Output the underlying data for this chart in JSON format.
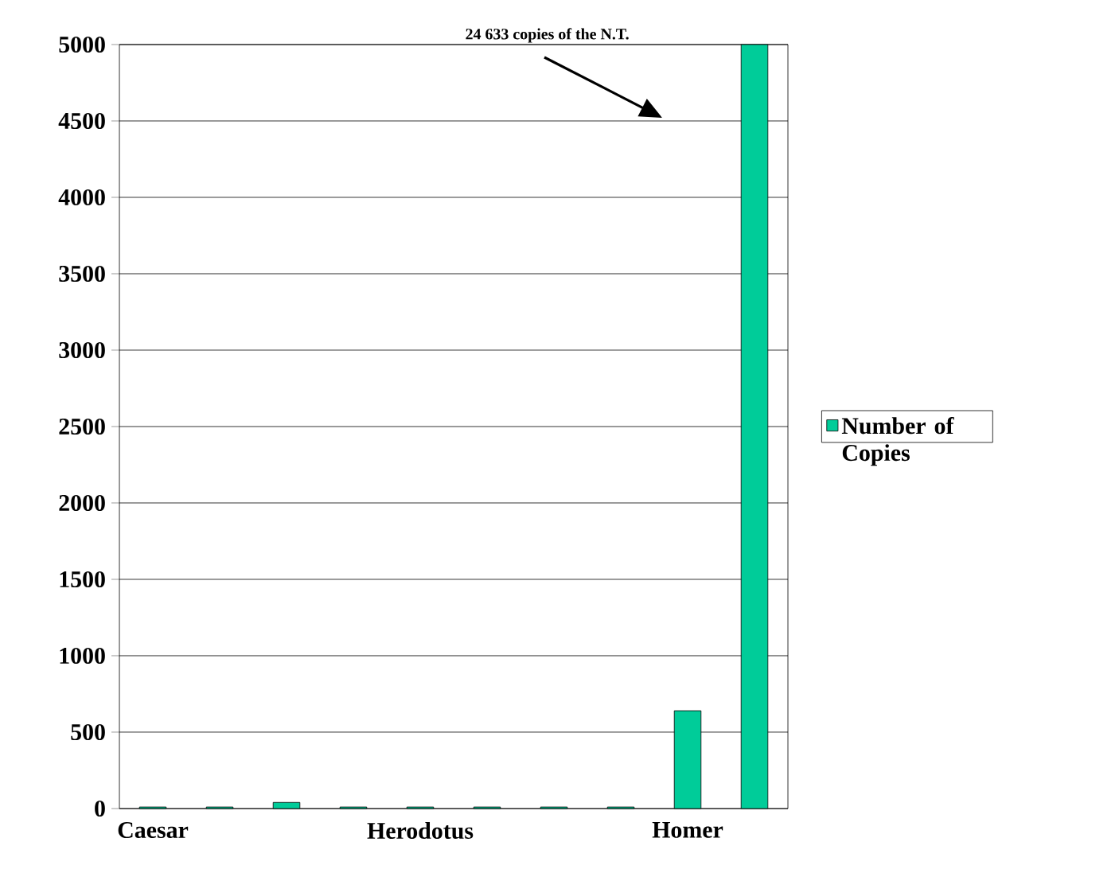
{
  "chart_data": {
    "type": "bar",
    "categories": [
      "Caesar",
      null,
      null,
      null,
      "Herodotus",
      null,
      null,
      null,
      "Homer",
      null
    ],
    "series": [
      {
        "name": "Number of Copies",
        "color": "#00cc99",
        "values": [
          10,
          10,
          40,
          10,
          10,
          10,
          10,
          10,
          640,
          5000
        ]
      }
    ],
    "ylim": [
      0,
      5000
    ],
    "yticks": [
      0,
      500,
      1000,
      1500,
      2000,
      2500,
      3000,
      3500,
      4000,
      4500,
      5000
    ],
    "grid": "y",
    "legend": "right",
    "annotations": [
      "24 633 copies of the N.T."
    ]
  }
}
